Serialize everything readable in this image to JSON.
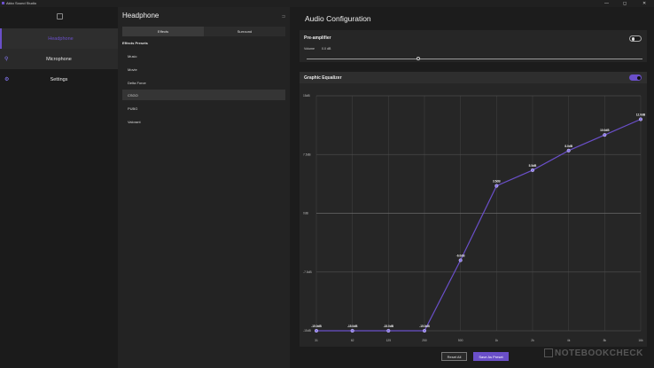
{
  "app": {
    "title": "Akko Sound Studio"
  },
  "window_controls": {
    "minimize": "—",
    "maximize": "◻",
    "close": "✕"
  },
  "sidebar": {
    "items": [
      {
        "label": "Headphone",
        "icon": "headphone-icon"
      },
      {
        "label": "Microphone",
        "icon": "microphone-icon"
      },
      {
        "label": "Settings",
        "icon": "gear-icon"
      }
    ],
    "accent": "#6a4fc9"
  },
  "device_panel": {
    "title": "Headphone",
    "tabs": [
      "Effects",
      "Surround"
    ],
    "presets_heading": "Effects Presets",
    "presets": [
      "Music",
      "Movie",
      "Delta Force",
      "CSGO",
      "PUBG",
      "Valorant"
    ],
    "selected_preset": "CSGO"
  },
  "config": {
    "title": "Audio Configuration",
    "preamp": {
      "label": "Pre-amplifier",
      "enabled": false,
      "volume_label": "Volume",
      "volume_value": "0.0 dB"
    },
    "equalizer": {
      "label": "Graphic Equalizer",
      "enabled": true
    }
  },
  "buttons": {
    "reset": "Reset All",
    "save": "Save As Preset"
  },
  "watermark": "NOTEBOOKCHECK",
  "chart_data": {
    "type": "line",
    "x": [
      "31",
      "62",
      "125",
      "250",
      "500",
      "1k",
      "2k",
      "4k",
      "8k",
      "16k"
    ],
    "values": [
      -15,
      -15,
      -15,
      -15,
      -6,
      3.5,
      5.5,
      8,
      10,
      12
    ],
    "point_labels": [
      "-15.0dB",
      "-15.0dB",
      "-15.0dB",
      "-15.0dB",
      "-6.0dB",
      "3.5dB",
      "5.5dB",
      "8.0dB",
      "10.0dB",
      "12.0dB"
    ],
    "y_ticks": [
      -15,
      -7.5,
      0,
      7.5,
      15
    ],
    "y_tick_labels": [
      "-15dB",
      "-7.5dB",
      "0dB",
      "7.5dB",
      "15dB"
    ],
    "ylim": [
      -15,
      15
    ],
    "grid": true,
    "colors": {
      "line": "#6a4fc9",
      "point": "#8a78e8"
    }
  }
}
